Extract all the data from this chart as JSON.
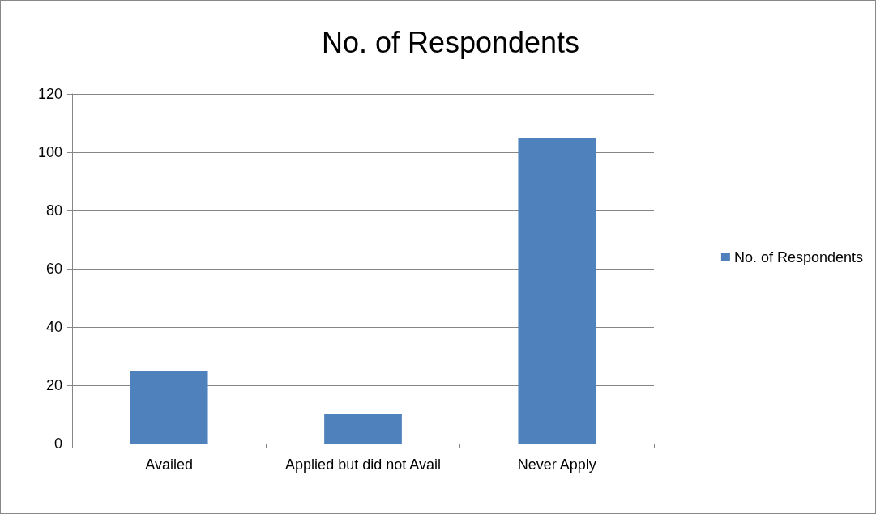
{
  "chart_data": {
    "type": "bar",
    "title": "No. of Respondents",
    "categories": [
      "Availed",
      "Applied but did not Avail",
      "Never Apply"
    ],
    "series": [
      {
        "name": "No. of Respondents",
        "color": "#4f81bd",
        "values": [
          25,
          10,
          105
        ]
      }
    ],
    "ylim": [
      0,
      120
    ],
    "yticks": [
      0,
      20,
      40,
      60,
      80,
      100,
      120
    ],
    "grid": "y",
    "legend": "right"
  }
}
